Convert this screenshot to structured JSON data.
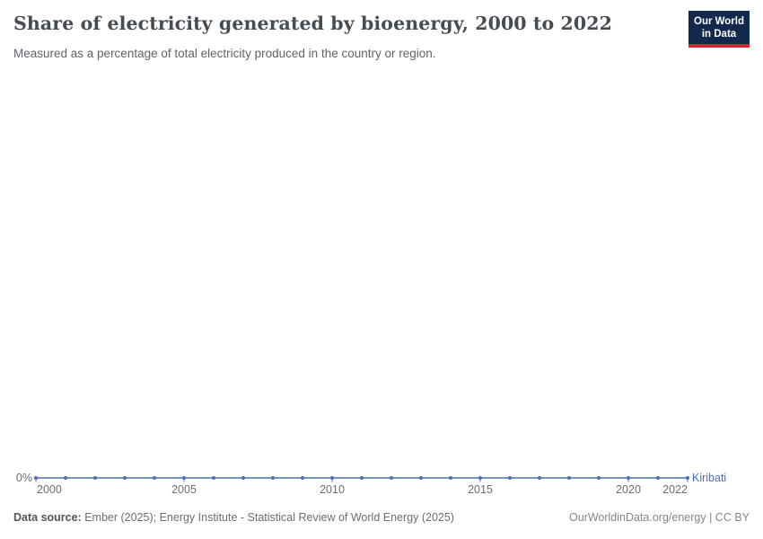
{
  "header": {
    "title": "Share of electricity generated by bioenergy, 2000 to 2022",
    "subtitle": "Measured as a percentage of total electricity produced in the country or region.",
    "logo": {
      "line1": "Our World",
      "line2": "in Data",
      "bg_color": "#12294d",
      "accent_color": "#d2262e"
    }
  },
  "chart_data": {
    "type": "line",
    "title": "Share of electricity generated by bioenergy, 2000 to 2022",
    "x": [
      2000,
      2001,
      2002,
      2003,
      2004,
      2005,
      2006,
      2007,
      2008,
      2009,
      2010,
      2011,
      2012,
      2013,
      2014,
      2015,
      2016,
      2017,
      2018,
      2019,
      2020,
      2021,
      2022
    ],
    "series": [
      {
        "name": "Kiribati",
        "color": "#4d6db4",
        "values": [
          0,
          0,
          0,
          0,
          0,
          0,
          0,
          0,
          0,
          0,
          0,
          0,
          0,
          0,
          0,
          0,
          0,
          0,
          0,
          0,
          0,
          0,
          0
        ]
      }
    ],
    "x_ticks": [
      2000,
      2005,
      2010,
      2015,
      2020,
      2022
    ],
    "x_tick_labels": [
      "2000",
      "2005",
      "2010",
      "2015",
      "2020",
      "2022"
    ],
    "y_axis": {
      "tick_labels": [
        "0%"
      ],
      "unit": "%"
    },
    "ylim": [
      0,
      null
    ],
    "grid": false,
    "legend_position": "end-of-line"
  },
  "footer": {
    "data_source_label": "Data source:",
    "data_source_text": " Ember (2025); Energy Institute - Statistical Review of World Energy (2025)",
    "credit": "OurWorldinData.org/energy | CC BY"
  }
}
